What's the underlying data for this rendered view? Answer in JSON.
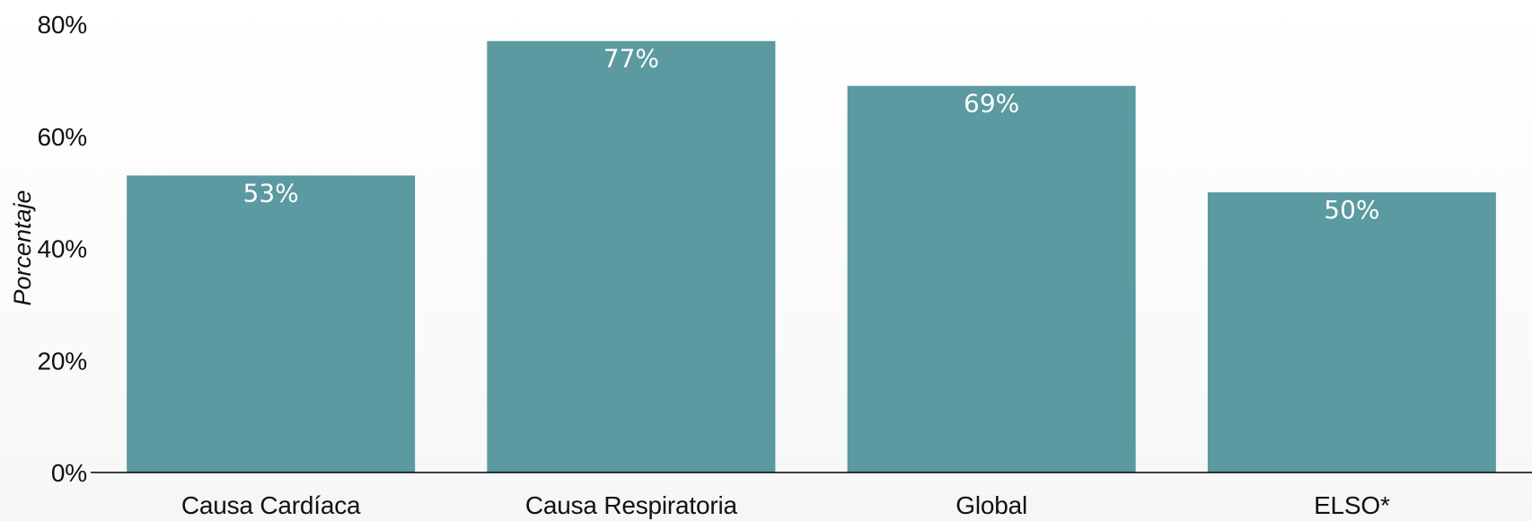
{
  "chart_data": {
    "type": "bar",
    "categories": [
      "Causa Cardíaca",
      "Causa Respiratoria",
      "Global",
      "ELSO*"
    ],
    "values": [
      53,
      77,
      69,
      50
    ],
    "data_labels": [
      "53%",
      "77%",
      "69%",
      "50%"
    ],
    "ylabel": "Porcentaje",
    "xlabel": "",
    "ylim": [
      0,
      80
    ],
    "y_ticks": [
      0,
      20,
      40,
      60,
      80
    ],
    "y_tick_labels": [
      "0%",
      "20%",
      "40%",
      "60%",
      "80%"
    ],
    "grid": false,
    "bar_color": "#5a9aa0",
    "axis_color": "#000000",
    "data_label_color": "#ffffff"
  }
}
